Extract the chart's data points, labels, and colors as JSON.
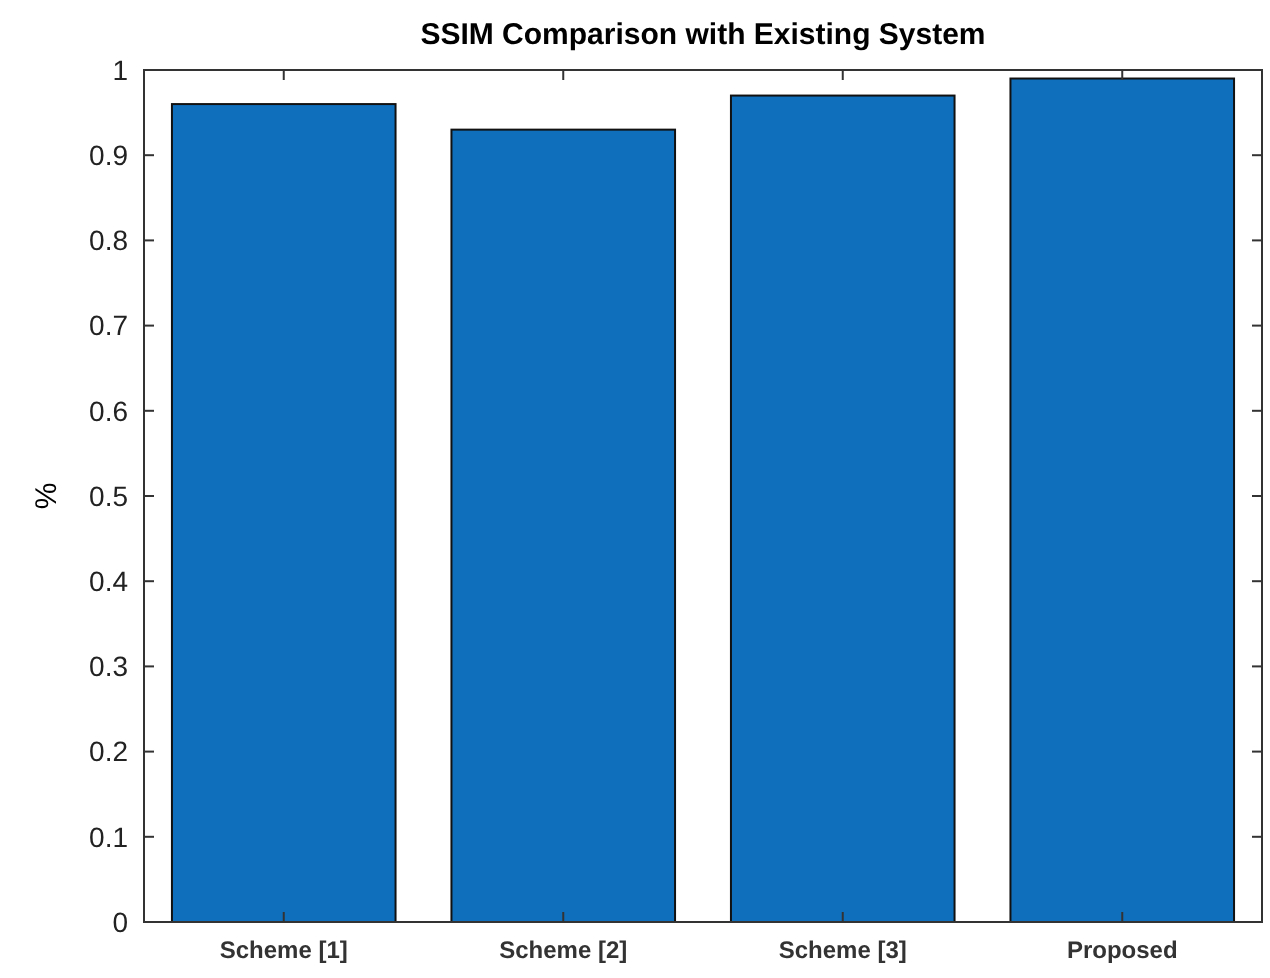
{
  "chart_data": {
    "type": "bar",
    "title": "SSIM Comparison with Existing System",
    "ylabel": "%",
    "categories": [
      "Scheme [1]",
      "Scheme [2]",
      "Scheme [3]",
      "Proposed"
    ],
    "values": [
      0.96,
      0.93,
      0.97,
      0.99
    ],
    "color": "#0f6fbd",
    "ylim": [
      0,
      1
    ],
    "yticks": [
      0,
      0.1,
      0.2,
      0.3,
      0.4,
      0.5,
      0.6,
      0.7,
      0.8,
      0.9,
      1
    ],
    "grid": false
  }
}
